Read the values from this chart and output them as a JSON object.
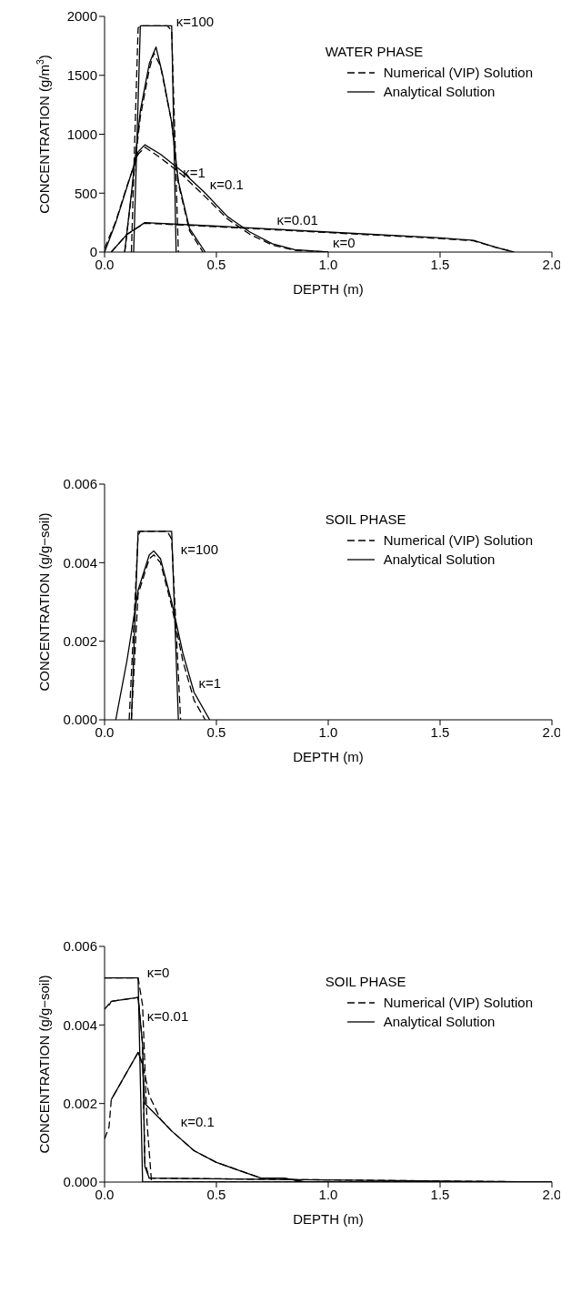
{
  "chart_data": [
    {
      "type": "line",
      "xlabel": "DEPTH (m)",
      "ylabel": "CONCENTRATION (g/m$^{3}$)",
      "legend_title": "WATER PHASE",
      "legend": "top right",
      "grid": false,
      "xlim": [
        0,
        2
      ],
      "xticks": [
        {
          "value": 0,
          "label": "0.0"
        },
        {
          "value": 0.5,
          "label": "0.5"
        },
        {
          "value": 1,
          "label": "1.0"
        },
        {
          "value": 1.5,
          "label": "1.5"
        },
        {
          "value": 2,
          "label": "2.0"
        }
      ],
      "ylim": [
        0,
        2000
      ],
      "yticks": [
        0,
        500,
        1000,
        1500,
        2000
      ],
      "series": [
        {
          "name": "Numerical (VIP) Solution",
          "color": "#000000",
          "line_style": "dashed",
          "x": [
            0.12,
            0.15,
            0.16,
            0.28,
            0.3,
            0.33
          ],
          "values": [
            0,
            1900,
            1920,
            1920,
            1880,
            0
          ]
        },
        {
          "name": "Analytical Solution",
          "color": "#000000",
          "line_style": "solid",
          "x": [
            0.13,
            0.16,
            0.3,
            0.32
          ],
          "values": [
            0,
            1920,
            1920,
            0
          ]
        },
        {
          "color": "#000000",
          "line_style": "dashed",
          "x": [
            0.09,
            0.12,
            0.16,
            0.2,
            0.22,
            0.25,
            0.3,
            0.33,
            0.38,
            0.44
          ],
          "values": [
            0,
            480,
            1150,
            1550,
            1690,
            1580,
            1100,
            580,
            180,
            0
          ]
        },
        {
          "color": "#000000",
          "line_style": "solid",
          "x": [
            0.09,
            0.12,
            0.16,
            0.2,
            0.23,
            0.26,
            0.3,
            0.33,
            0.38,
            0.45
          ],
          "values": [
            0,
            500,
            1200,
            1600,
            1740,
            1500,
            1100,
            600,
            200,
            0
          ]
        },
        {
          "color": "#000000",
          "line_style": "dashed",
          "x": [
            0,
            0.05,
            0.1,
            0.15,
            0.18,
            0.25,
            0.35,
            0.45,
            0.55,
            0.65,
            0.75,
            0.85,
            1.0
          ],
          "values": [
            30,
            260,
            560,
            830,
            890,
            800,
            650,
            470,
            280,
            150,
            60,
            15,
            0
          ]
        },
        {
          "color": "#000000",
          "line_style": "solid",
          "x": [
            0,
            0.05,
            0.1,
            0.15,
            0.18,
            0.25,
            0.35,
            0.45,
            0.55,
            0.65,
            0.75,
            0.85,
            1.0
          ],
          "values": [
            0,
            250,
            550,
            850,
            910,
            830,
            680,
            500,
            300,
            170,
            70,
            20,
            0
          ]
        },
        {
          "color": "#000000",
          "line_style": "dashed",
          "x": [
            0.03,
            0.1,
            0.18,
            0.5,
            1.0,
            1.5,
            1.65,
            1.75,
            1.83
          ],
          "values": [
            0,
            150,
            245,
            215,
            165,
            115,
            95,
            40,
            0
          ]
        },
        {
          "color": "#000000",
          "line_style": "solid",
          "x": [
            0.03,
            0.1,
            0.18,
            0.5,
            1.0,
            1.5,
            1.65,
            1.75,
            1.83
          ],
          "values": [
            0,
            150,
            250,
            220,
            170,
            120,
            100,
            40,
            0
          ]
        }
      ],
      "annotations": [
        {
          "text": "κ=100",
          "x": 0.3,
          "y": 1880
        },
        {
          "text": "κ=1",
          "x": 0.33,
          "y": 600
        },
        {
          "text": "κ=0.1",
          "x": 0.45,
          "y": 500
        },
        {
          "text": "κ=0.01",
          "x": 0.75,
          "y": 195
        },
        {
          "text": "κ=0",
          "x": 1.0,
          "y": 0
        }
      ]
    },
    {
      "type": "line",
      "xlabel": "DEPTH (m)",
      "ylabel": "CONCENTRATION (g/g−soil)",
      "legend_title": "SOIL PHASE",
      "legend": "top right",
      "grid": false,
      "xlim": [
        0,
        2
      ],
      "xticks": [
        {
          "value": 0,
          "label": "0.0"
        },
        {
          "value": 0.5,
          "label": "0.5"
        },
        {
          "value": 1,
          "label": "1.0"
        },
        {
          "value": 1.5,
          "label": "1.5"
        },
        {
          "value": 2,
          "label": "2.0"
        }
      ],
      "ylim": [
        0,
        0.006
      ],
      "yticks": [
        {
          "value": 0,
          "label": "0.000"
        },
        {
          "value": 0.002,
          "label": "0.002"
        },
        {
          "value": 0.004,
          "label": "0.004"
        },
        {
          "value": 0.006,
          "label": "0.006"
        }
      ],
      "series": [
        {
          "name": "Numerical (VIP) Solution",
          "color": "#000000",
          "line_style": "dashed",
          "x": [
            0.11,
            0.15,
            0.16,
            0.28,
            0.3,
            0.34
          ],
          "values": [
            0,
            0.0047,
            0.0048,
            0.0048,
            0.0046,
            0
          ]
        },
        {
          "name": "Analytical Solution",
          "color": "#000000",
          "line_style": "solid",
          "x": [
            0.12,
            0.15,
            0.3,
            0.33
          ],
          "values": [
            0,
            0.0048,
            0.0048,
            0
          ]
        },
        {
          "color": "#000000",
          "line_style": "dashed",
          "x": [
            0.12,
            0.15,
            0.2,
            0.22,
            0.25,
            0.3,
            0.35,
            0.4,
            0.45
          ],
          "values": [
            0,
            0.0032,
            0.0041,
            0.0042,
            0.004,
            0.0029,
            0.0015,
            0.0005,
            0
          ]
        },
        {
          "color": "#000000",
          "line_style": "solid",
          "x": [
            0.05,
            0.1,
            0.15,
            0.2,
            0.22,
            0.25,
            0.3,
            0.35,
            0.4,
            0.47
          ],
          "values": [
            0,
            0.0015,
            0.0033,
            0.0042,
            0.0043,
            0.0041,
            0.003,
            0.0017,
            0.0007,
            0
          ]
        }
      ],
      "annotations": [
        {
          "text": "κ=100",
          "x": 0.32,
          "y": 0.0041
        },
        {
          "text": "κ=1",
          "x": 0.4,
          "y": 0.0007
        }
      ]
    },
    {
      "type": "line",
      "xlabel": "DEPTH (m)",
      "ylabel": "CONCENTRATION (g/g−soil)",
      "legend_title": "SOIL PHASE",
      "legend": "top right",
      "grid": false,
      "xlim": [
        0,
        2
      ],
      "xticks": [
        {
          "value": 0,
          "label": "0.0"
        },
        {
          "value": 0.5,
          "label": "0.5"
        },
        {
          "value": 1,
          "label": "1.0"
        },
        {
          "value": 1.5,
          "label": "1.5"
        },
        {
          "value": 2,
          "label": "2.0"
        }
      ],
      "ylim": [
        0,
        0.006
      ],
      "yticks": [
        {
          "value": 0,
          "label": "0.000"
        },
        {
          "value": 0.002,
          "label": "0.002"
        },
        {
          "value": 0.004,
          "label": "0.004"
        },
        {
          "value": 0.006,
          "label": "0.006"
        }
      ],
      "series": [
        {
          "name": "Numerical (VIP) Solution",
          "color": "#000000",
          "line_style": "dashed",
          "x": [
            0,
            0.15,
            0.17,
            0.19,
            0.21,
            2.0
          ],
          "values": [
            0.0052,
            0.0052,
            0.0045,
            0.0015,
            0,
            0
          ]
        },
        {
          "name": "Analytical Solution",
          "color": "#000000",
          "line_style": "solid",
          "x": [
            0,
            0.15,
            0.17,
            2.0
          ],
          "values": [
            0.0052,
            0.0052,
            0,
            0
          ]
        },
        {
          "color": "#000000",
          "line_style": "dashed",
          "x": [
            0,
            0.03,
            0.15,
            0.17,
            0.18,
            0.2,
            2.0
          ],
          "values": [
            0.0044,
            0.0046,
            0.0047,
            0.0035,
            0.0005,
            0.0001,
            0
          ]
        },
        {
          "color": "#000000",
          "line_style": "solid",
          "x": [
            0.02,
            0.03,
            0.15,
            0.17,
            0.18,
            0.2,
            2.0
          ],
          "values": [
            0.0045,
            0.0046,
            0.0047,
            0.0035,
            0.0004,
            0.0001,
            0
          ]
        },
        {
          "color": "#000000",
          "line_style": "dashed",
          "x": [
            0,
            0.02,
            0.03,
            0.1,
            0.15,
            0.17,
            0.2,
            0.25,
            0.3,
            0.4,
            0.5,
            0.6,
            0.7,
            0.8,
            0.9,
            1.0
          ],
          "values": [
            0.0011,
            0.0014,
            0.0021,
            0.0028,
            0.0033,
            0.003,
            0.0022,
            0.0016,
            0.0013,
            0.0008,
            0.0005,
            0.0003,
            0.0001,
            0.0001,
            0,
            0
          ]
        },
        {
          "color": "#000000",
          "line_style": "solid",
          "x": [
            0.03,
            0.08,
            0.15,
            0.17,
            0.18,
            0.25,
            0.3,
            0.4,
            0.5,
            0.6,
            0.7,
            0.8,
            0.9,
            1.0
          ],
          "values": [
            0.0021,
            0.0026,
            0.0033,
            0.003,
            0.002,
            0.0016,
            0.0013,
            0.0008,
            0.0005,
            0.0003,
            0.0001,
            0.0001,
            0,
            0
          ]
        }
      ],
      "annotations": [
        {
          "text": "κ=0",
          "x": 0.17,
          "y": 0.0051
        },
        {
          "text": "κ=0.01",
          "x": 0.17,
          "y": 0.004
        },
        {
          "text": "κ=0.1",
          "x": 0.32,
          "y": 0.0013
        }
      ]
    }
  ]
}
